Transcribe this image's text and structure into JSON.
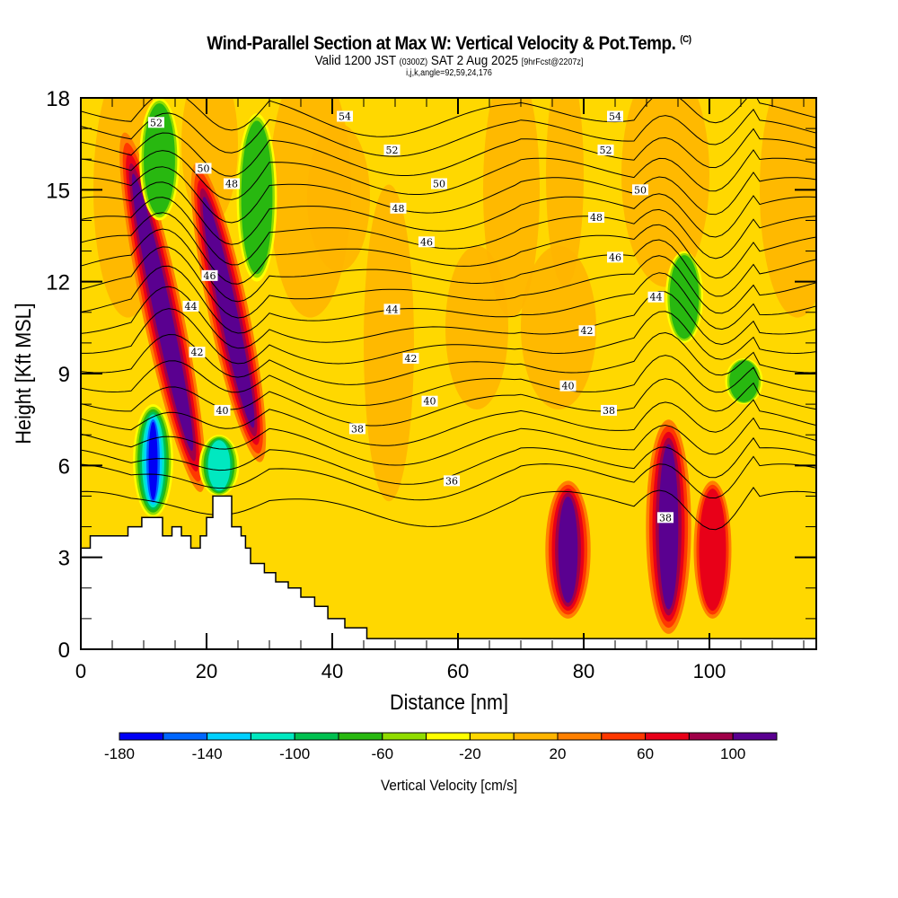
{
  "title": {
    "main": "Wind-Parallel Section at Max W: Vertical Velocity & Pot.Temp.",
    "copyright": "(C)",
    "valid_prefix": "Valid 1200 JST",
    "valid_utc": "(0300Z)",
    "valid_date": "SAT 2 Aug 2025",
    "forecast": "[9hrFcst@2207z]",
    "indices": "i,j,k,angle=92,59,24,176"
  },
  "chart_data": {
    "type": "heatmap",
    "title": "Wind-Parallel Section at Max W: Vertical Velocity & Pot.Temp.",
    "xlabel": "Distance [nm]",
    "ylabel": "Height [Kft MSL]",
    "xlim": [
      0,
      117
    ],
    "ylim": [
      0,
      18
    ],
    "xticks": [
      "0",
      "20",
      "40",
      "60",
      "80",
      "100"
    ],
    "xtick_values": [
      0,
      20,
      40,
      60,
      80,
      100
    ],
    "yticks": [
      "0",
      "3",
      "6",
      "9",
      "12",
      "15",
      "18"
    ],
    "ytick_values": [
      0,
      3,
      6,
      9,
      12,
      15,
      18
    ],
    "colorbar": {
      "label": "Vertical Velocity [cm/s]",
      "bounds": [
        -180,
        -160,
        -140,
        -120,
        -100,
        -80,
        -60,
        -40,
        -20,
        0,
        20,
        40,
        60,
        80,
        100,
        120
      ],
      "tick_labels": [
        "-180",
        "-140",
        "-100",
        "-60",
        "-20",
        "20",
        "60",
        "100"
      ],
      "tick_values": [
        -180,
        -140,
        -100,
        -60,
        -20,
        20,
        60,
        100
      ],
      "colors": [
        "#0000f5",
        "#0066ff",
        "#00d0ff",
        "#00e8c0",
        "#00c050",
        "#28b810",
        "#90dc00",
        "#ffff00",
        "#ffd800",
        "#ffb400",
        "#ff8000",
        "#ff3800",
        "#e80018",
        "#a00048",
        "#5a0090"
      ]
    },
    "background_level_color": "#ffd800",
    "velocity_features": [
      {
        "x": 13,
        "y_range": [
          5,
          17
        ],
        "peak": 100,
        "kind": "updraft"
      },
      {
        "x": 11.5,
        "y_range": [
          4.3,
          8
        ],
        "peak": -160,
        "kind": "downdraft"
      },
      {
        "x": 23.5,
        "y_range": [
          6,
          16
        ],
        "peak": 100,
        "kind": "updraft"
      },
      {
        "x": 22,
        "y_range": [
          5,
          7
        ],
        "peak": -100,
        "kind": "downdraft"
      },
      {
        "x": 28,
        "y_range": [
          12,
          17.5
        ],
        "peak": -60,
        "kind": "downdraft"
      },
      {
        "x": 12.5,
        "y_range": [
          14,
          18
        ],
        "peak": -60,
        "kind": "downdraft"
      },
      {
        "x": 77.5,
        "y_range": [
          1,
          5.5
        ],
        "peak": 100,
        "kind": "updraft"
      },
      {
        "x": 93.5,
        "y_range": [
          0.5,
          7.5
        ],
        "peak": 120,
        "kind": "updraft"
      },
      {
        "x": 100.5,
        "y_range": [
          1,
          5.5
        ],
        "peak": 60,
        "kind": "updraft"
      },
      {
        "x": 96,
        "y_range": [
          10,
          13
        ],
        "peak": -60,
        "kind": "downdraft"
      },
      {
        "x": 105.5,
        "y_range": [
          8,
          9.5
        ],
        "peak": -60,
        "kind": "downdraft"
      }
    ],
    "theta_contours": {
      "label": "Pot.Temp.",
      "levels": [
        35,
        36,
        37,
        38,
        39,
        40,
        41,
        42,
        43,
        44,
        45,
        46,
        47,
        48,
        49,
        50,
        51,
        52,
        53,
        54,
        55
      ],
      "labels": [
        {
          "text": "52",
          "x": 12,
          "y": 17.2
        },
        {
          "text": "54",
          "x": 42,
          "y": 17.4
        },
        {
          "text": "54",
          "x": 85,
          "y": 17.4
        },
        {
          "text": "50",
          "x": 19.5,
          "y": 15.7
        },
        {
          "text": "48",
          "x": 24,
          "y": 15.2
        },
        {
          "text": "52",
          "x": 49.5,
          "y": 16.3
        },
        {
          "text": "52",
          "x": 83.5,
          "y": 16.3
        },
        {
          "text": "50",
          "x": 57,
          "y": 15.2
        },
        {
          "text": "50",
          "x": 89,
          "y": 15
        },
        {
          "text": "48",
          "x": 50.5,
          "y": 14.4
        },
        {
          "text": "48",
          "x": 82,
          "y": 14.1
        },
        {
          "text": "46",
          "x": 55,
          "y": 13.3
        },
        {
          "text": "46",
          "x": 85,
          "y": 12.8
        },
        {
          "text": "46",
          "x": 20.5,
          "y": 12.2
        },
        {
          "text": "44",
          "x": 17.5,
          "y": 11.2
        },
        {
          "text": "44",
          "x": 49.5,
          "y": 11.1
        },
        {
          "text": "44",
          "x": 91.5,
          "y": 11.5
        },
        {
          "text": "42",
          "x": 18.5,
          "y": 9.7
        },
        {
          "text": "42",
          "x": 52.5,
          "y": 9.5
        },
        {
          "text": "42",
          "x": 80.5,
          "y": 10.4
        },
        {
          "text": "40",
          "x": 22.5,
          "y": 7.8
        },
        {
          "text": "40",
          "x": 55.5,
          "y": 8.1
        },
        {
          "text": "40",
          "x": 77.5,
          "y": 8.6
        },
        {
          "text": "38",
          "x": 44,
          "y": 7.2
        },
        {
          "text": "38",
          "x": 84,
          "y": 7.8
        },
        {
          "text": "36",
          "x": 59,
          "y": 5.5
        },
        {
          "text": "38",
          "x": 93,
          "y": 4.3
        }
      ]
    },
    "terrain_profile": {
      "x": [
        0,
        0,
        1.5,
        1.5,
        7.5,
        7.5,
        9.7,
        9.7,
        13,
        13,
        14.5,
        14.5,
        16,
        16,
        17.5,
        17.5,
        19,
        19,
        20,
        20,
        21,
        21,
        24,
        24,
        25.5,
        25.5,
        26.2,
        26.2,
        27,
        27,
        29.2,
        29.2,
        31,
        31,
        33,
        33,
        35,
        35,
        37.2,
        37.2,
        39.3,
        39.3,
        42,
        42,
        45.5,
        45.5,
        49.5,
        49.5,
        117,
        117
      ],
      "y": [
        0,
        3.3,
        3.3,
        3.7,
        3.7,
        4.0,
        4.0,
        4.3,
        4.3,
        3.7,
        3.7,
        4.0,
        4.0,
        3.7,
        3.7,
        3.3,
        3.3,
        3.7,
        3.7,
        4.3,
        4.3,
        5.0,
        5.0,
        4.0,
        4.0,
        3.7,
        3.7,
        3.3,
        3.3,
        2.8,
        2.8,
        2.5,
        2.5,
        2.2,
        2.2,
        2.0,
        2.0,
        1.7,
        1.7,
        1.4,
        1.4,
        1.0,
        1.0,
        0.7,
        0.7,
        0.35,
        0.35,
        0.35,
        0.35,
        0
      ]
    }
  }
}
